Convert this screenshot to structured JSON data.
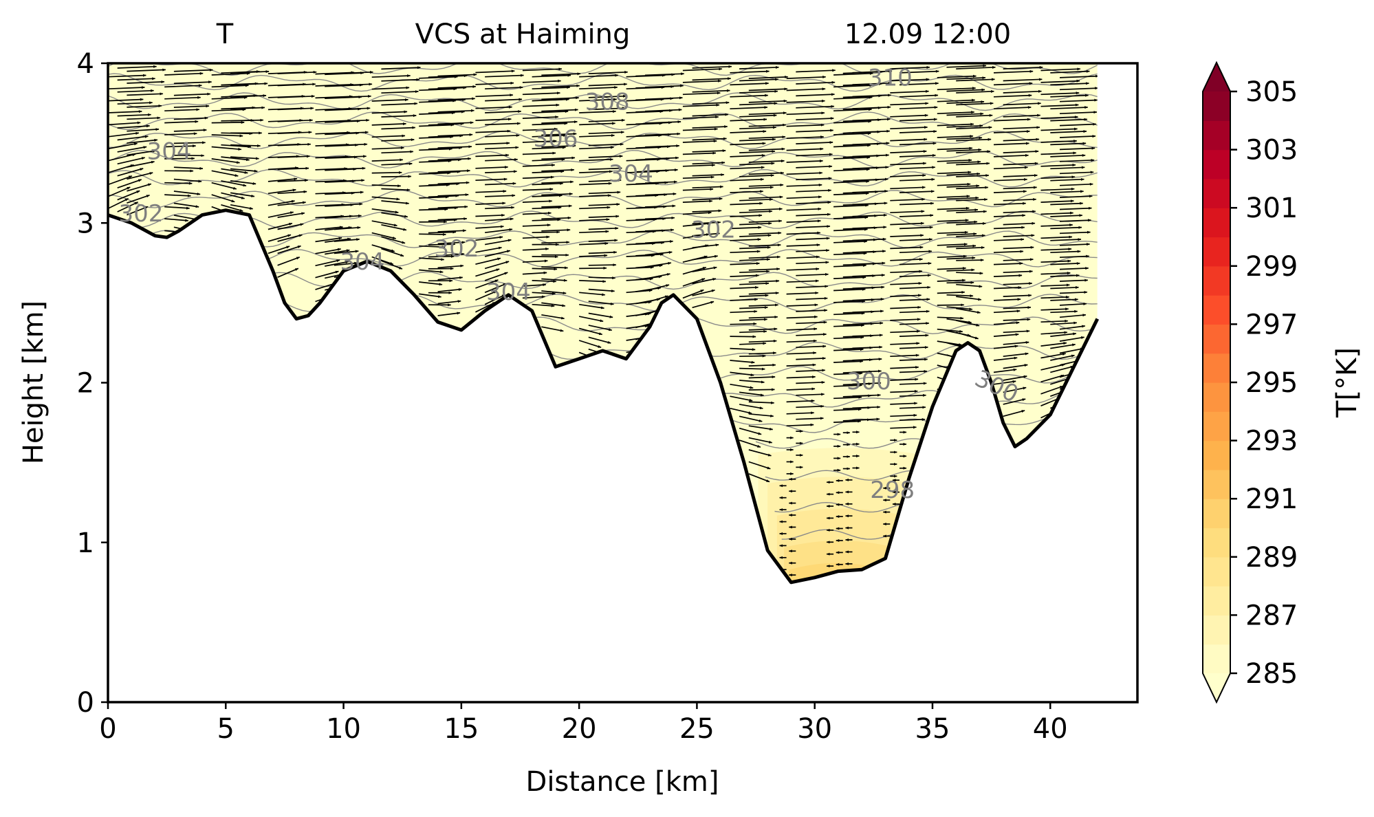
{
  "chart_data": {
    "type": "heatmap",
    "title_left": "T",
    "title_center": "VCS at Haiming",
    "title_right": "12.09 12:00",
    "xlabel": "Distance [km]",
    "ylabel": "Height [km]",
    "xlim": [
      0,
      43.7
    ],
    "ylim": [
      0,
      4
    ],
    "x_ticks": [
      0,
      5,
      10,
      15,
      20,
      25,
      30,
      35,
      40
    ],
    "y_ticks": [
      0,
      1,
      2,
      3,
      4
    ],
    "colorbar": {
      "label": "T[°K]",
      "min": 285,
      "max": 305,
      "step": 1,
      "tick_values": [
        285,
        287,
        289,
        291,
        293,
        295,
        297,
        299,
        301,
        303,
        305
      ],
      "colormap": "YlOrRd",
      "extend": "both",
      "low_color": "#ffffcc",
      "high_color": "#800026"
    },
    "terrain": {
      "distance": [
        0,
        1,
        2,
        2.5,
        3,
        4,
        5,
        6,
        7,
        7.5,
        8,
        8.5,
        9,
        10,
        11,
        12,
        13,
        14,
        15,
        16,
        17,
        18,
        19,
        20,
        21,
        22,
        23,
        23.5,
        24,
        25,
        26,
        27,
        28,
        29,
        30,
        31,
        32,
        33,
        34,
        35,
        36,
        36.5,
        37,
        37.5,
        38,
        38.5,
        39,
        40,
        41,
        42
      ],
      "height": [
        3.05,
        3.0,
        2.92,
        2.91,
        2.95,
        3.05,
        3.08,
        3.05,
        2.7,
        2.5,
        2.4,
        2.42,
        2.5,
        2.7,
        2.76,
        2.7,
        2.55,
        2.38,
        2.33,
        2.45,
        2.55,
        2.45,
        2.1,
        2.15,
        2.2,
        2.15,
        2.35,
        2.5,
        2.55,
        2.4,
        2.0,
        1.5,
        0.95,
        0.75,
        0.78,
        0.82,
        0.83,
        0.9,
        1.4,
        1.85,
        2.2,
        2.25,
        2.2,
        2.0,
        1.75,
        1.6,
        1.65,
        1.8,
        2.1,
        2.4
      ]
    },
    "contour_labels": [
      {
        "text": "310",
        "x": 33.2,
        "y": 3.9,
        "angle": 0
      },
      {
        "text": "308",
        "x": 21.2,
        "y": 3.75,
        "angle": 0
      },
      {
        "text": "306",
        "x": 19.0,
        "y": 3.52,
        "angle": 0
      },
      {
        "text": "304",
        "x": 2.6,
        "y": 3.44,
        "angle": 0
      },
      {
        "text": "304",
        "x": 22.2,
        "y": 3.3,
        "angle": 0
      },
      {
        "text": "302",
        "x": 1.4,
        "y": 3.05,
        "angle": 0
      },
      {
        "text": "302",
        "x": 25.7,
        "y": 2.95,
        "angle": 0
      },
      {
        "text": "302",
        "x": 14.8,
        "y": 2.83,
        "angle": 0
      },
      {
        "text": "304",
        "x": 10.8,
        "y": 2.75,
        "angle": 0
      },
      {
        "text": "304",
        "x": 17.0,
        "y": 2.56,
        "angle": 0
      },
      {
        "text": "300",
        "x": 32.3,
        "y": 2.0,
        "angle": 0
      },
      {
        "text": "300",
        "x": 37.7,
        "y": 1.97,
        "angle": 25
      },
      {
        "text": "298",
        "x": 33.3,
        "y": 1.32,
        "angle": 0
      }
    ]
  }
}
